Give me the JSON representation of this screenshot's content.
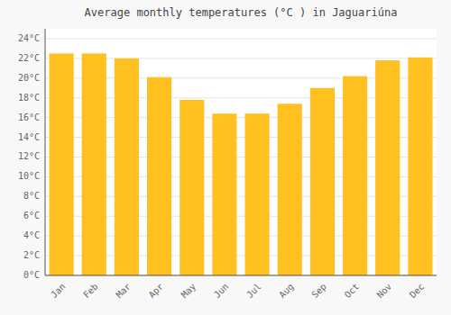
{
  "chart_data": {
    "type": "bar",
    "title": "Average monthly temperatures (°C ) in Jaguariúna",
    "categories": [
      "Jan",
      "Feb",
      "Mar",
      "Apr",
      "May",
      "Jun",
      "Jul",
      "Aug",
      "Sep",
      "Oct",
      "Nov",
      "Dec"
    ],
    "values": [
      22.5,
      22.5,
      22.0,
      20.1,
      17.8,
      16.4,
      16.4,
      17.4,
      19.0,
      20.2,
      21.8,
      22.1
    ],
    "color": "#FFC020",
    "ylim": [
      0,
      25
    ],
    "yticks": [
      {
        "value": 0,
        "label": "0°C"
      },
      {
        "value": 2,
        "label": "2°C"
      },
      {
        "value": 4,
        "label": "4°C"
      },
      {
        "value": 6,
        "label": "6°C"
      },
      {
        "value": 8,
        "label": "8°C"
      },
      {
        "value": 10,
        "label": "10°C"
      },
      {
        "value": 12,
        "label": "12°C"
      },
      {
        "value": 14,
        "label": "14°C"
      },
      {
        "value": 16,
        "label": "16°C"
      },
      {
        "value": 18,
        "label": "18°C"
      },
      {
        "value": 20,
        "label": "20°C"
      },
      {
        "value": 22,
        "label": "22°C"
      },
      {
        "value": 24,
        "label": "24°C"
      }
    ],
    "grid": true
  }
}
